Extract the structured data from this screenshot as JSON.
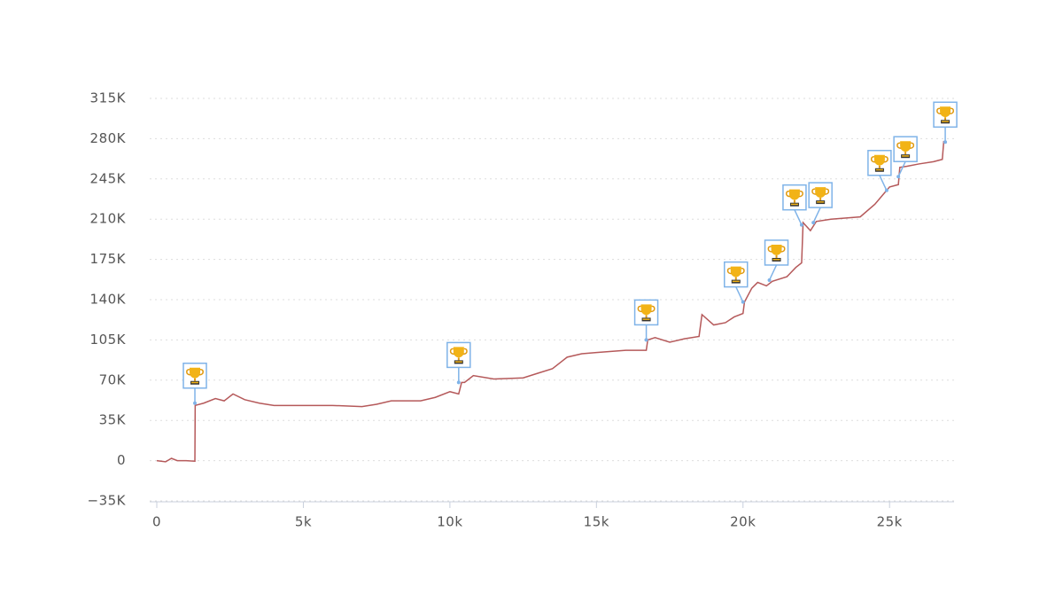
{
  "chart_data": {
    "type": "line",
    "series": [
      {
        "color": "#b5595a",
        "x": [
          0,
          300,
          500,
          700,
          1000,
          1300,
          1310,
          1600,
          2000,
          2300,
          2600,
          3000,
          3500,
          4000,
          5000,
          6000,
          7000,
          7500,
          8000,
          9000,
          9500,
          10000,
          10300,
          10400,
          10500,
          10800,
          11500,
          12500,
          13000,
          13500,
          14000,
          14500,
          15000,
          16000,
          16700,
          16750,
          17000,
          17500,
          18000,
          18500,
          18600,
          19000,
          19400,
          19700,
          20000,
          20050,
          20300,
          20500,
          20800,
          21000,
          21500,
          21800,
          22000,
          22050,
          22300,
          22500,
          23000,
          24000,
          24500,
          24800,
          25000,
          25300,
          25350,
          25600,
          26000,
          26500,
          26800,
          26850
        ],
        "values": [
          0,
          -1000,
          2000,
          0,
          0,
          -500,
          48000,
          50000,
          54000,
          52000,
          58000,
          53000,
          50000,
          48000,
          48000,
          48000,
          47000,
          49000,
          52000,
          52000,
          55000,
          60000,
          58000,
          68000,
          68000,
          74000,
          71000,
          72000,
          76000,
          80000,
          90000,
          93000,
          94000,
          96000,
          96000,
          105000,
          107000,
          103000,
          106000,
          108000,
          127000,
          118000,
          120000,
          125000,
          128000,
          138000,
          150000,
          155000,
          152000,
          156000,
          160000,
          168000,
          172000,
          207000,
          200000,
          208000,
          210000,
          212000,
          223000,
          232000,
          238000,
          240000,
          255000,
          256000,
          258000,
          260000,
          262000,
          278000
        ]
      }
    ],
    "markers": {
      "x": [
        1300,
        10300,
        16700,
        20000,
        20900,
        22000,
        22400,
        24900,
        25300,
        26900
      ],
      "y": [
        50000,
        68000,
        105000,
        138000,
        157000,
        205000,
        207000,
        235000,
        247000,
        277000
      ]
    },
    "xlim": [
      0,
      27200
    ],
    "ylim": [
      -35000,
      315000
    ],
    "xticks": [
      0,
      {
        "value": 5000,
        "label": "5k"
      },
      {
        "value": 10000,
        "label": "10k"
      },
      {
        "value": 15000,
        "label": "15k"
      },
      {
        "value": 20000,
        "label": "20k"
      },
      {
        "value": 25000,
        "label": "25k"
      }
    ],
    "yticks": [
      {
        "value": -35000,
        "label": "−35K"
      },
      0,
      {
        "value": 35000,
        "label": "35K"
      },
      {
        "value": 70000,
        "label": "70K"
      },
      {
        "value": 105000,
        "label": "105K"
      },
      {
        "value": 140000,
        "label": "140K"
      },
      {
        "value": 175000,
        "label": "175K"
      },
      {
        "value": 210000,
        "label": "210K"
      },
      {
        "value": 245000,
        "label": "245K"
      },
      {
        "value": 280000,
        "label": "280K"
      },
      {
        "value": 315000,
        "label": "315K"
      }
    ],
    "grid": true
  }
}
